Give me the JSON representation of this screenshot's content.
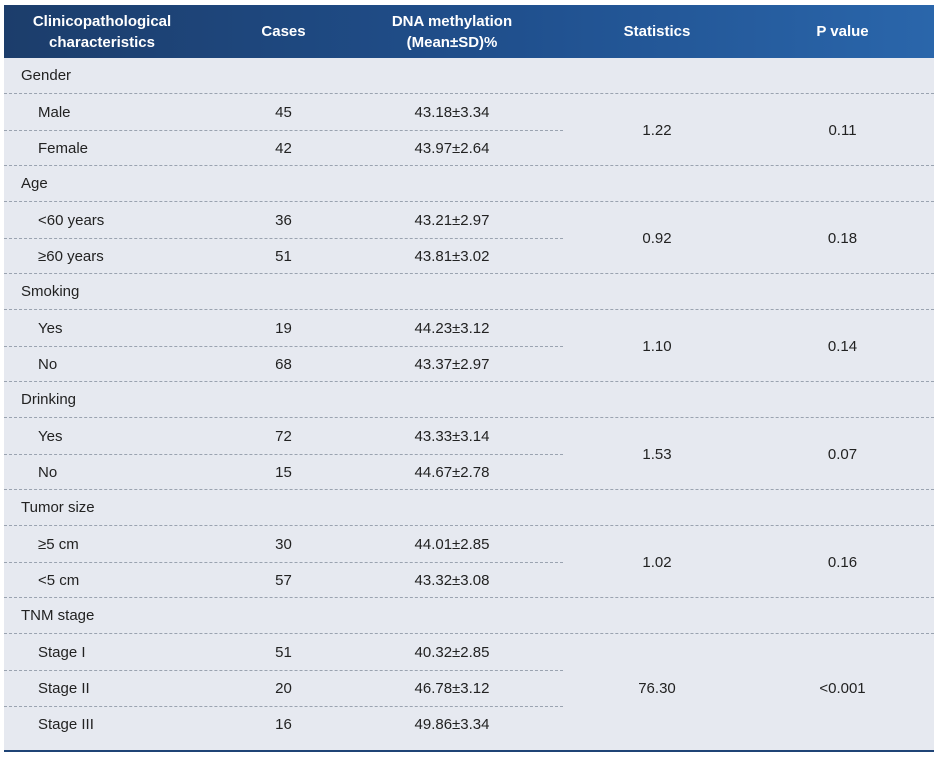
{
  "header": {
    "col1": "Clinicopathological characteristics",
    "col2": "Cases",
    "col3": "DNA methylation (Mean±SD)%",
    "col4": "Statistics",
    "col5": "P value"
  },
  "groups": [
    {
      "title": "Gender",
      "statistics": "1.22",
      "p_value": "0.11",
      "rows": [
        {
          "label": "Male",
          "cases": "45",
          "methylation": "43.18±3.34"
        },
        {
          "label": "Female",
          "cases": "42",
          "methylation": "43.97±2.64"
        }
      ]
    },
    {
      "title": "Age",
      "statistics": "0.92",
      "p_value": "0.18",
      "rows": [
        {
          "label": "<60 years",
          "cases": "36",
          "methylation": "43.21±2.97"
        },
        {
          "label": "≥60 years",
          "cases": "51",
          "methylation": "43.81±3.02"
        }
      ]
    },
    {
      "title": "Smoking",
      "statistics": "1.10",
      "p_value": "0.14",
      "rows": [
        {
          "label": "Yes",
          "cases": "19",
          "methylation": "44.23±3.12"
        },
        {
          "label": "No",
          "cases": "68",
          "methylation": "43.37±2.97"
        }
      ]
    },
    {
      "title": "Drinking",
      "statistics": "1.53",
      "p_value": "0.07",
      "rows": [
        {
          "label": "Yes",
          "cases": "72",
          "methylation": "43.33±3.14"
        },
        {
          "label": "No",
          "cases": "15",
          "methylation": "44.67±2.78"
        }
      ]
    },
    {
      "title": "Tumor size",
      "statistics": "1.02",
      "p_value": "0.16",
      "rows": [
        {
          "label": "≥5 cm",
          "cases": "30",
          "methylation": "44.01±2.85"
        },
        {
          "label": "<5 cm",
          "cases": "57",
          "methylation": "43.32±3.08"
        }
      ]
    },
    {
      "title": "TNM stage",
      "statistics": "76.30",
      "p_value": "<0.001",
      "rows": [
        {
          "label": "Stage I",
          "cases": "51",
          "methylation": "40.32±2.85"
        },
        {
          "label": "Stage II",
          "cases": "20",
          "methylation": "46.78±3.12"
        },
        {
          "label": "Stage III",
          "cases": "16",
          "methylation": "49.86±3.34"
        }
      ]
    }
  ]
}
